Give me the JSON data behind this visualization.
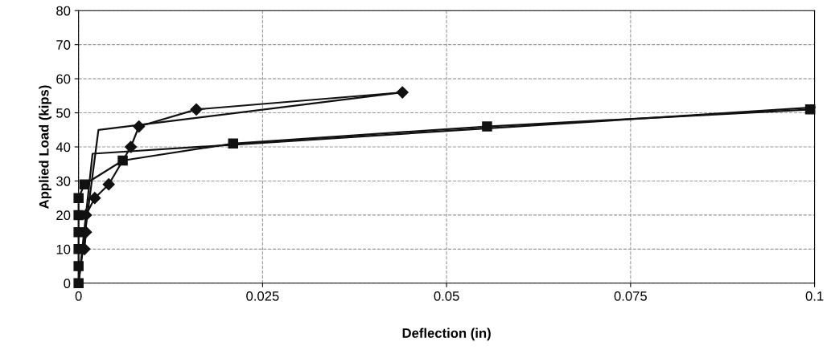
{
  "chart_data": {
    "type": "line",
    "xlabel": "Deflection (in)",
    "ylabel": "Applied Load (kips)",
    "xlim": [
      0,
      0.1
    ],
    "ylim": [
      0,
      80
    ],
    "xticks": [
      0,
      0.025,
      0.05,
      0.075,
      0.1
    ],
    "yticks": [
      0,
      10,
      20,
      30,
      40,
      50,
      60,
      70,
      80
    ],
    "grid": true,
    "legend": false,
    "line_style": "solid",
    "series": [
      {
        "color": "#111111",
        "marker": "diamond",
        "x": [
          0.0008,
          0.001,
          0.001,
          0.0022,
          0.0041,
          0.0071,
          0.0082,
          0.016,
          0.044
        ],
        "values": [
          10,
          15,
          20,
          25,
          29,
          40,
          46,
          51,
          56
        ]
      },
      {
        "color": "#111111",
        "marker": "square",
        "x": [
          0,
          0,
          0,
          0,
          0,
          0,
          0.0008,
          0.006,
          0.021,
          0.0555,
          0.0994
        ],
        "values": [
          0,
          5,
          10,
          15,
          20,
          25,
          29,
          36,
          41,
          46,
          51
        ]
      },
      {
        "color": "#111111",
        "marker": "none",
        "x": [
          0,
          0.0027,
          0.044
        ],
        "values": [
          0,
          45,
          56
        ]
      },
      {
        "color": "#111111",
        "marker": "none",
        "x": [
          0,
          0.0019,
          0.1
        ],
        "values": [
          0,
          38,
          51.6
        ]
      }
    ]
  }
}
